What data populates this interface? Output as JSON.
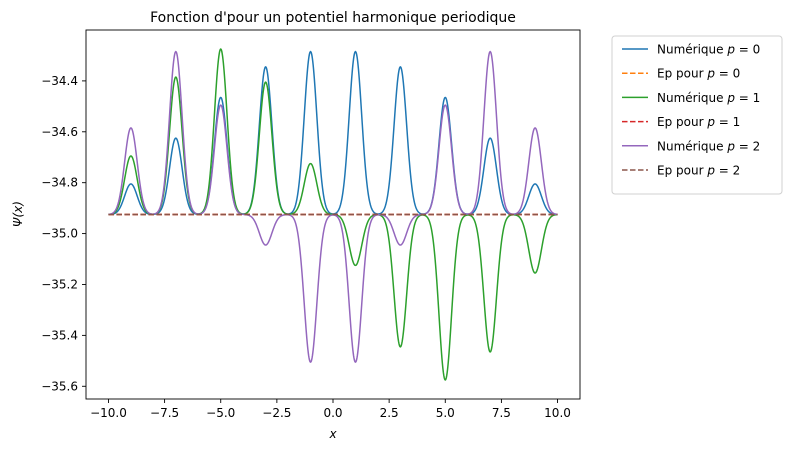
{
  "chart_data": {
    "type": "line",
    "title": "Fonction d'pour un potentiel harmonique periodique",
    "xlabel": "x",
    "ylabel": "Ψ(x)",
    "xlim": [
      -11,
      11
    ],
    "ylim": [
      -35.65,
      -34.2
    ],
    "xticks": [
      -10.0,
      -7.5,
      -5.0,
      -2.5,
      0.0,
      2.5,
      5.0,
      7.5,
      10.0
    ],
    "xtick_labels": [
      "−10.0",
      "−7.5",
      "−5.0",
      "−2.5",
      "0.0",
      "2.5",
      "5.0",
      "7.5",
      "10.0"
    ],
    "yticks": [
      -34.4,
      -34.6,
      -34.8,
      -35.0,
      -35.2,
      -35.4,
      -35.6
    ],
    "ytick_labels": [
      "−34.4",
      "−34.6",
      "−34.8",
      "−35.0",
      "−35.2",
      "−35.4",
      "−35.6"
    ],
    "baseline": -34.925,
    "grid": false,
    "legend_placement": "outside-upper-right",
    "peak_centers": [
      -9,
      -7,
      -5,
      -3,
      -1,
      1,
      3,
      5,
      7,
      9
    ],
    "peak_width": 0.28,
    "series": [
      {
        "name": "Numérique",
        "p": "0",
        "style": "solid",
        "color": "#1f77b4",
        "amplitudes": [
          0.12,
          0.3,
          0.46,
          0.58,
          0.64,
          0.64,
          0.58,
          0.46,
          0.3,
          0.12
        ]
      },
      {
        "name": "Ep pour",
        "p": "0",
        "style": "dashed",
        "color": "#ff7f0e",
        "constant": -34.925
      },
      {
        "name": "Numérique",
        "p": "1",
        "style": "solid",
        "color": "#2ca02c",
        "amplitudes": [
          0.23,
          0.54,
          0.65,
          0.52,
          0.2,
          -0.2,
          -0.52,
          -0.65,
          -0.54,
          -0.23
        ]
      },
      {
        "name": "Ep pour",
        "p": "1",
        "style": "dashed",
        "color": "#d62728",
        "constant": -34.925
      },
      {
        "name": "Numérique",
        "p": "2",
        "style": "solid",
        "color": "#9467bd",
        "amplitudes": [
          0.34,
          0.64,
          0.43,
          -0.12,
          -0.58,
          -0.58,
          -0.12,
          0.43,
          0.64,
          0.34
        ]
      },
      {
        "name": "Ep pour",
        "p": "2",
        "style": "dashed",
        "color": "#8c564b",
        "constant": -34.925
      }
    ]
  }
}
